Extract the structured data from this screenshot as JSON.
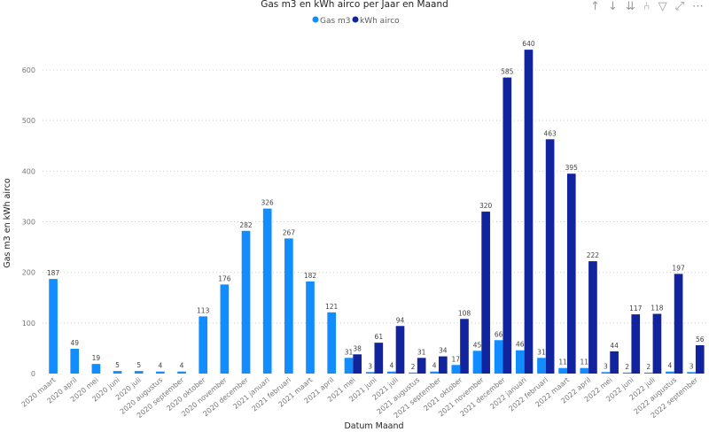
{
  "toolbar": {
    "icons": [
      "arrow-up-icon",
      "arrow-down-icon",
      "double-arrow-down-icon",
      "expand-hierarchy-icon",
      "filter-icon",
      "focus-mode-icon",
      "more-options-icon"
    ],
    "glyphs": [
      "↑",
      "↓",
      "⇊",
      "⑃",
      "▽",
      "⤢",
      "⋯"
    ]
  },
  "chart_data": {
    "type": "bar",
    "title": "Gas m3 en kWh airco per Jaar en Maand",
    "xlabel": "Datum Maand",
    "ylabel": "Gas m3 en kWh airco",
    "ylim": [
      0,
      650
    ],
    "yticks": [
      0,
      100,
      200,
      300,
      400,
      500,
      600
    ],
    "grid": true,
    "legend_position": "top-center",
    "categories": [
      "2020 maart",
      "2020 april",
      "2020 mei",
      "2020 juni",
      "2020 juli",
      "2020 augustus",
      "2020 september",
      "2020 oktober",
      "2020 november",
      "2020 december",
      "2021 januari",
      "2021 februari",
      "2021 maart",
      "2021 april",
      "2021 mei",
      "2021 juni",
      "2021 juli",
      "2021 augustus",
      "2021 september",
      "2021 oktober",
      "2021 november",
      "2021 december",
      "2022 januari",
      "2022 februari",
      "2022 maart",
      "2022 april",
      "2022 mei",
      "2022 juni",
      "2022 juli",
      "2022 augustus",
      "2022 september"
    ],
    "series": [
      {
        "name": "Gas m3",
        "color": "#118DFF",
        "values": [
          187,
          49,
          19,
          5,
          5,
          4,
          4,
          113,
          176,
          282,
          326,
          267,
          182,
          121,
          31,
          3,
          4,
          2,
          4,
          17,
          45,
          66,
          46,
          31,
          11,
          11,
          3,
          2,
          2,
          4,
          3
        ]
      },
      {
        "name": "kWh airco",
        "color": "#12239E",
        "values": [
          null,
          null,
          null,
          null,
          null,
          null,
          null,
          null,
          null,
          null,
          null,
          null,
          null,
          null,
          38,
          61,
          94,
          31,
          34,
          108,
          320,
          585,
          640,
          463,
          395,
          222,
          44,
          117,
          118,
          197,
          56
        ]
      }
    ]
  }
}
